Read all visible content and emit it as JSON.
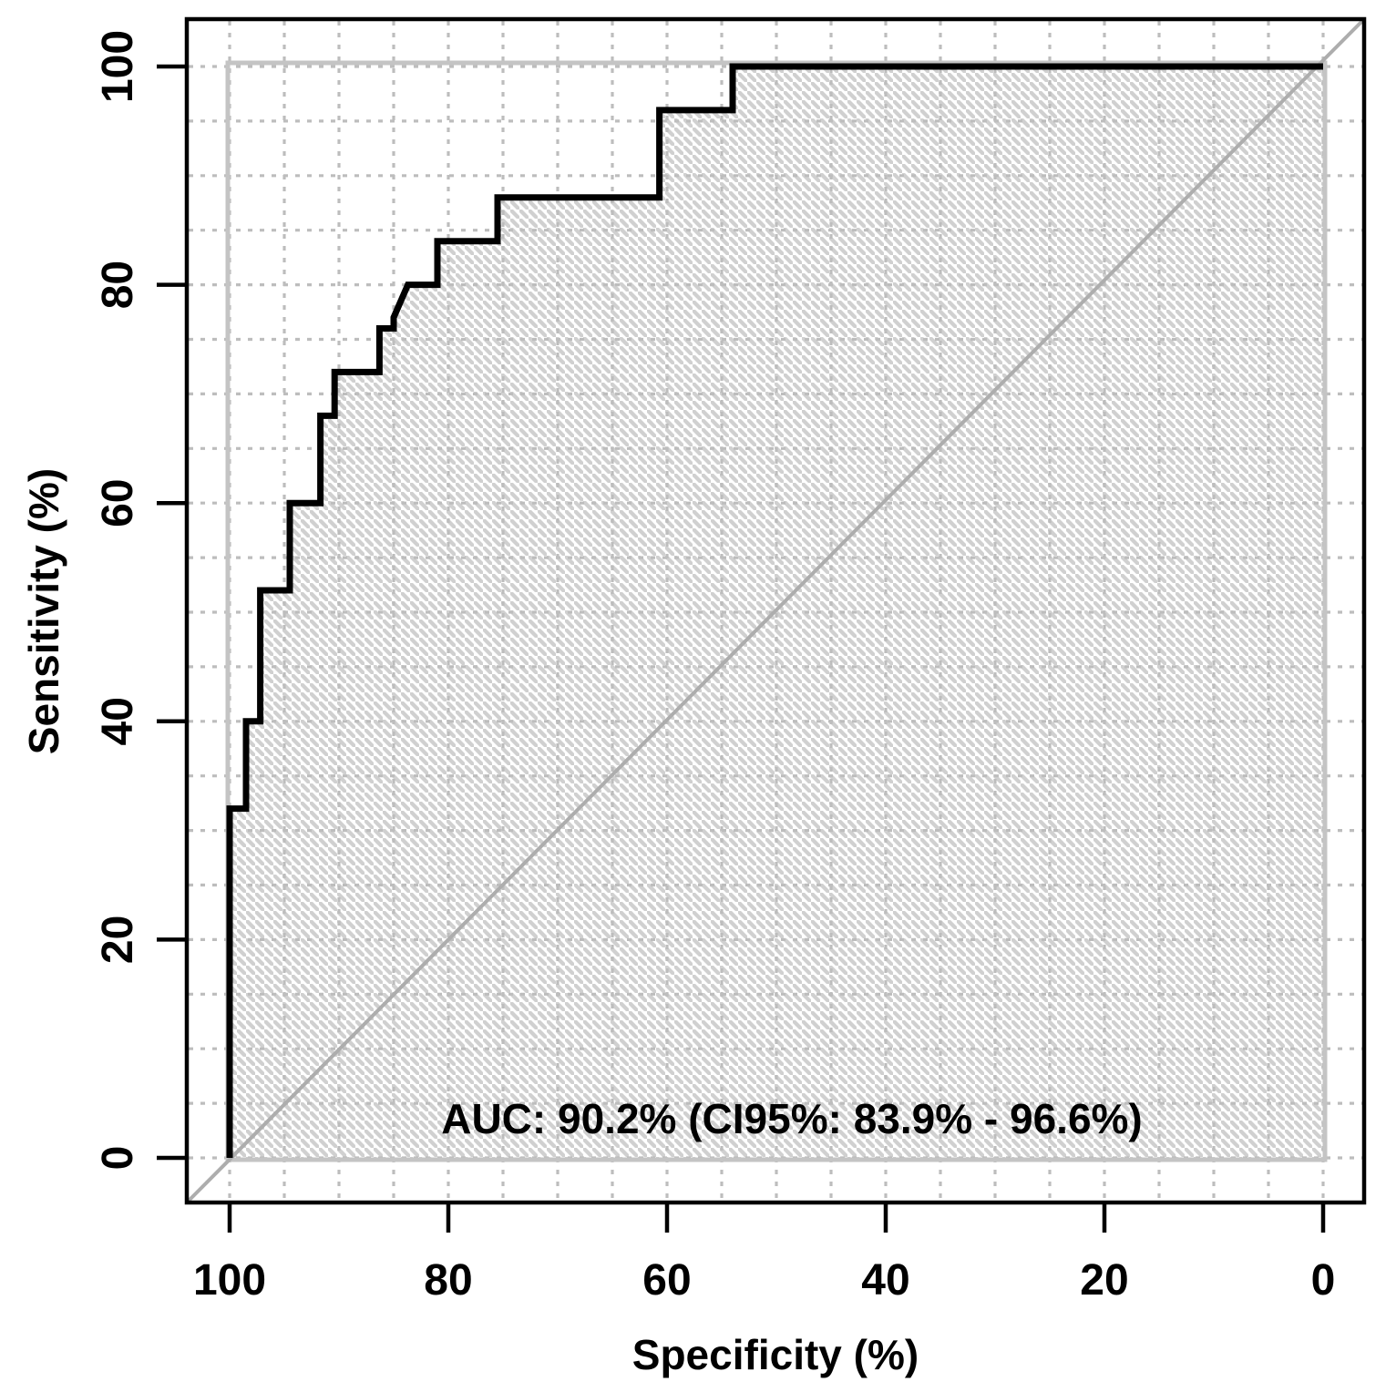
{
  "chart_data": {
    "type": "line",
    "subtype": "roc-curve",
    "title": "",
    "xlabel": "Specificity (%)",
    "ylabel": "Sensitivity (%)",
    "xlim": [
      100,
      0
    ],
    "ylim": [
      0,
      100
    ],
    "x_axis_reversed": true,
    "grid": true,
    "grid_step_percent": 5,
    "x_ticks": [
      100,
      80,
      60,
      40,
      20,
      0
    ],
    "x_tick_labels": [
      "100",
      "80",
      "60",
      "40",
      "20",
      "0"
    ],
    "y_ticks": [
      0,
      20,
      40,
      60,
      80,
      100
    ],
    "y_tick_labels": [
      "0",
      "20",
      "40",
      "60",
      "80",
      "100"
    ],
    "annotation": {
      "text": "AUC: 90.2% (CI95%: 83.9% - 96.6%)",
      "auc_percent": 90.2,
      "ci95_low_percent": 83.9,
      "ci95_high_percent": 96.6
    },
    "series": [
      {
        "name": "roc-curve",
        "points_spec_sens": [
          [
            100,
            0
          ],
          [
            100,
            32
          ],
          [
            98.5,
            32
          ],
          [
            98.5,
            40
          ],
          [
            97.2,
            40
          ],
          [
            97.2,
            52
          ],
          [
            94.5,
            52
          ],
          [
            94.5,
            60
          ],
          [
            91.7,
            60
          ],
          [
            91.7,
            68
          ],
          [
            90.4,
            68
          ],
          [
            90.4,
            72
          ],
          [
            86.3,
            72
          ],
          [
            86.3,
            76
          ],
          [
            85,
            76
          ],
          [
            85,
            77
          ],
          [
            83.7,
            80
          ],
          [
            81,
            80
          ],
          [
            81,
            84
          ],
          [
            75.5,
            84
          ],
          [
            75.5,
            88
          ],
          [
            60.7,
            88
          ],
          [
            60.7,
            96
          ],
          [
            54,
            96
          ],
          [
            54,
            100
          ],
          [
            0,
            100
          ]
        ]
      }
    ],
    "reference": {
      "diagonal_chance_line": true,
      "data_bounds_box": true,
      "area_under_curve_fill": "diagonal-hatch"
    },
    "legend_position": "none",
    "colors": {
      "curve": "#000000",
      "grid": "#bdbdbd",
      "hatch": "#d0d0d0",
      "bounds_box": "#c4c4c4",
      "diagonal": "#adadad",
      "text": "#000000",
      "background": "#ffffff"
    }
  }
}
